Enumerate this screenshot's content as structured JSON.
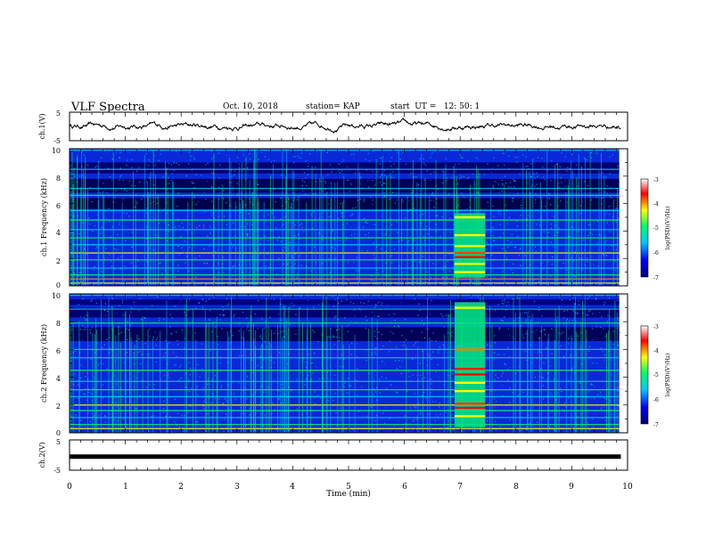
{
  "header": {
    "title": "VLF Spectra",
    "date": "Oct. 10, 2018",
    "station": "station= KAP",
    "start": "start  UT =   12: 50: 1"
  },
  "colors": {
    "background": "#ffffff",
    "axis": "#000000",
    "colormap": [
      "#00007a",
      "#0000ff",
      "#00c8ff",
      "#00ff64",
      "#ffff00",
      "#ff0000",
      "#ffffff"
    ]
  },
  "chart_data": [
    {
      "type": "line",
      "panel": "ch1-waveform",
      "ylabel": "ch.1(V)",
      "ylim": [
        -5,
        5
      ],
      "yticks": [
        "5",
        "-5"
      ],
      "xlim": [
        0,
        10
      ],
      "note": "continuous irregular waveform, amplitude roughly -2 to +3 V"
    },
    {
      "type": "heatmap",
      "panel": "ch1-spectrogram",
      "ylabel": "ch.1 Frequency (kHz)",
      "ylim": [
        0,
        10
      ],
      "yticks": [
        "0",
        "2",
        "4",
        "6",
        "8",
        "10"
      ],
      "xlim": [
        0,
        10
      ],
      "colorbar": {
        "label": "log(PSD)(V²/Hz)",
        "ticks": [
          "-3",
          "-4",
          "-5",
          "-6",
          "-7"
        ],
        "range": [
          -7,
          -3
        ]
      },
      "burst": {
        "t_start": 6.9,
        "t_end": 7.45
      },
      "data_end": 9.85
    },
    {
      "type": "heatmap",
      "panel": "ch2-spectrogram",
      "ylabel": "ch.2 Frequency (kHz)",
      "ylim": [
        0,
        10
      ],
      "yticks": [
        "0",
        "2",
        "4",
        "6",
        "8",
        "10"
      ],
      "xlim": [
        0,
        10
      ],
      "colorbar": {
        "label": "log(PSD)(V²/Hz)",
        "ticks": [
          "-3",
          "-4",
          "-5",
          "-6",
          "-7"
        ],
        "range": [
          -7,
          -3
        ]
      },
      "burst": {
        "t_start": 6.9,
        "t_end": 7.45
      },
      "data_end": 9.85
    },
    {
      "type": "line",
      "panel": "ch2-waveform",
      "ylabel": "ch.2(V)",
      "ylim": [
        -5,
        5
      ],
      "yticks": [
        "5",
        "-5"
      ],
      "xlim": [
        0,
        10
      ],
      "value": -0.5,
      "note": "flat thick line"
    }
  ],
  "xaxis": {
    "label": "Time  (min)",
    "ticks": [
      "0",
      "1",
      "2",
      "3",
      "4",
      "5",
      "6",
      "7",
      "8",
      "9",
      "10"
    ],
    "range": [
      0,
      10
    ]
  }
}
